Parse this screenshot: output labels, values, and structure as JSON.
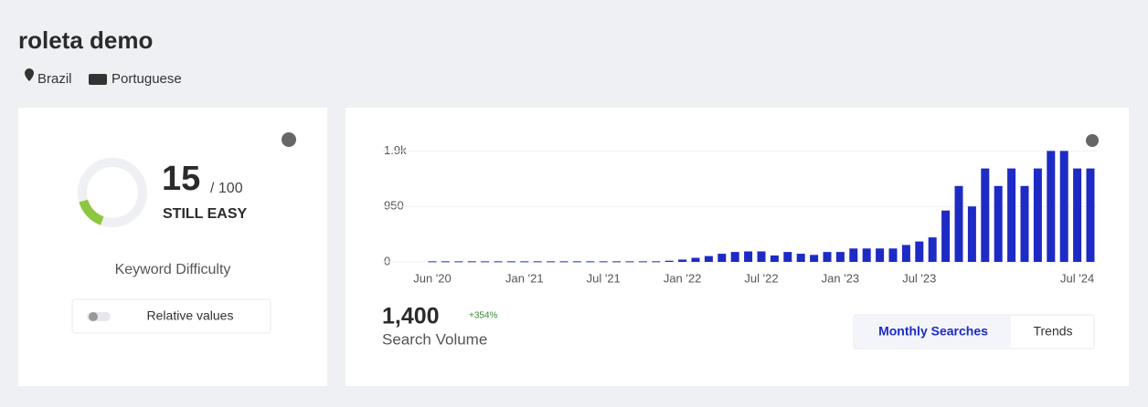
{
  "header": {
    "title": "roleta demo",
    "location": "Brazil",
    "language": "Portuguese"
  },
  "difficulty": {
    "value": 15,
    "max": {
      "value": 100,
      "label": "/ 100"
    },
    "rating": "STILL EASY",
    "label": "Keyword Difficulty",
    "toggle": "Relative values"
  },
  "volume": {
    "value": "1,400",
    "change": "+354%",
    "label": "Search Volume",
    "tabs": [
      "Monthly Searches",
      "Trends"
    ]
  },
  "chart_data": {
    "type": "bar",
    "color": "#1d2bc4",
    "categories": [
      "Jun '20",
      null,
      null,
      null,
      null,
      null,
      null,
      "Jan '21",
      null,
      null,
      null,
      null,
      null,
      "Jul '21",
      null,
      null,
      null,
      null,
      null,
      "Jan '22",
      null,
      null,
      null,
      null,
      null,
      "Jul '22",
      null,
      null,
      null,
      null,
      null,
      "Jan '23",
      null,
      null,
      null,
      null,
      null,
      "Jul '23",
      null,
      null,
      null,
      null,
      null,
      null,
      null,
      null,
      null,
      null,
      null,
      "Jul '24",
      null
    ],
    "values": [
      10,
      10,
      10,
      10,
      10,
      10,
      10,
      10,
      10,
      10,
      10,
      10,
      10,
      10,
      10,
      10,
      10,
      10,
      20,
      40,
      70,
      100,
      140,
      170,
      180,
      180,
      110,
      170,
      140,
      120,
      170,
      170,
      230,
      230,
      230,
      230,
      290,
      350,
      420,
      880,
      1300,
      950,
      1600,
      1300,
      1600,
      1300,
      1600,
      1900,
      1900,
      1600,
      1600
    ],
    "ylim": [
      0,
      2000
    ],
    "yticks": [
      0,
      950,
      {
        "value": 1900,
        "label": "1.9k"
      }
    ],
    "grid": true
  }
}
